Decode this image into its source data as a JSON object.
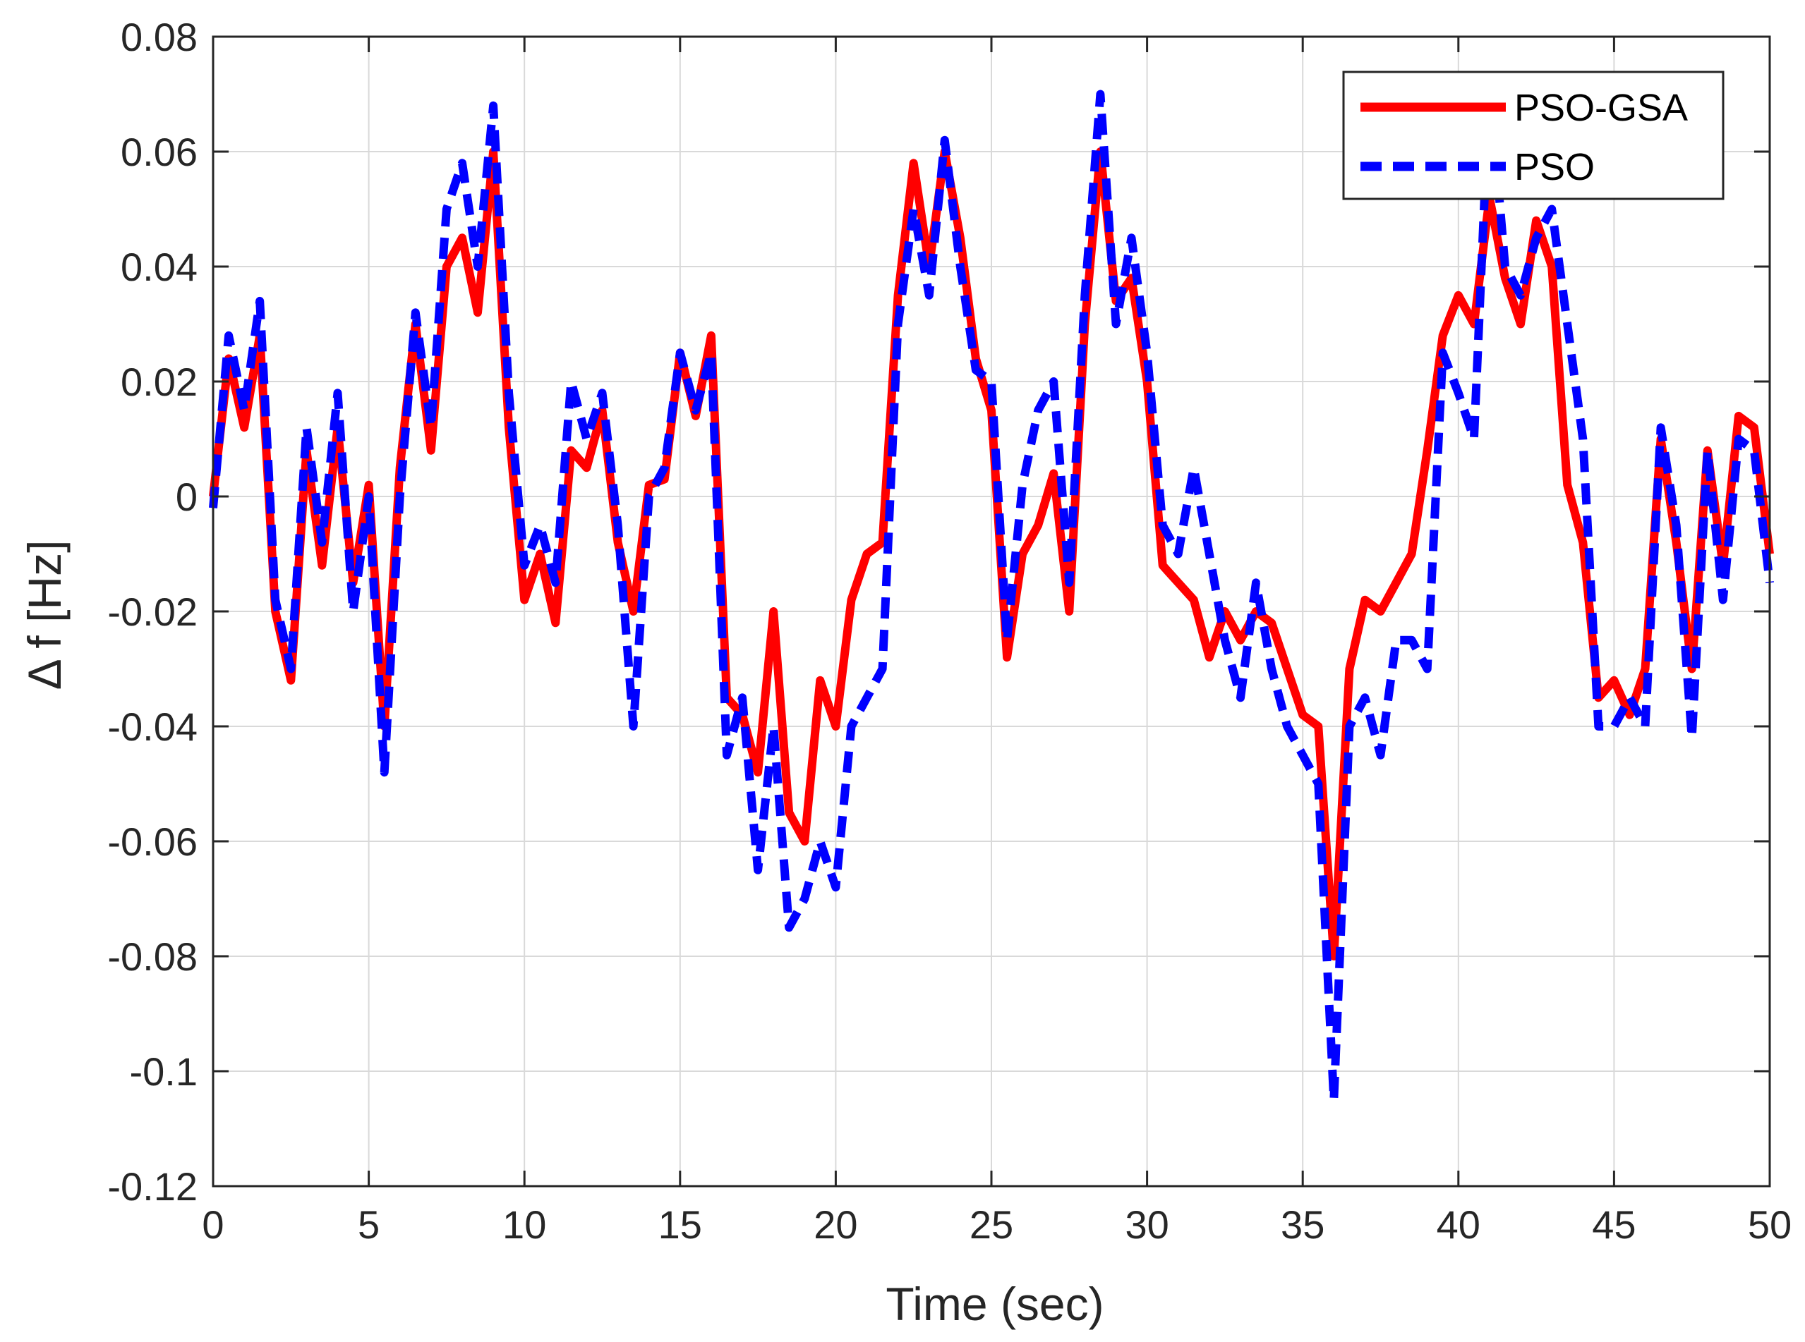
{
  "chart_data": {
    "type": "line",
    "title": "",
    "xlabel": "Time (sec)",
    "ylabel": "Δ f [Hz]",
    "xlim": [
      0,
      50
    ],
    "ylim": [
      -0.12,
      0.08
    ],
    "grid": true,
    "legend_position": "top-right",
    "x_ticks": [
      0,
      5,
      10,
      15,
      20,
      25,
      30,
      35,
      40,
      45,
      50
    ],
    "x_tick_labels": [
      "0",
      "5",
      "10",
      "15",
      "20",
      "25",
      "30",
      "35",
      "40",
      "45",
      "50"
    ],
    "y_ticks": [
      0.08,
      0.06,
      0.04,
      0.02,
      0,
      -0.02,
      -0.04,
      -0.06,
      -0.08,
      -0.1,
      -0.12
    ],
    "y_tick_labels": [
      "0.08",
      "0.06",
      "0.04",
      "0.02",
      "0",
      "-0.02",
      "-0.04",
      "-0.06",
      "-0.08",
      "-0.1",
      "-0.12"
    ],
    "series": [
      {
        "name": "PSO-GSA",
        "color": "#ff0000",
        "dash": "solid",
        "x": [
          0,
          0.5,
          1,
          1.5,
          2,
          2.5,
          3,
          3.5,
          4,
          4.5,
          5,
          5.5,
          6,
          6.5,
          7,
          7.5,
          8,
          8.5,
          9,
          9.5,
          10,
          10.5,
          11,
          11.5,
          12,
          12.5,
          13,
          13.5,
          14,
          14.5,
          15,
          15.5,
          16,
          16.5,
          17,
          17.5,
          18,
          18.5,
          19,
          19.5,
          20,
          20.5,
          21,
          21.5,
          22,
          22.5,
          23,
          23.5,
          24,
          24.5,
          25,
          25.5,
          26,
          26.5,
          27,
          27.5,
          28,
          28.5,
          29,
          29.5,
          30,
          30.5,
          31,
          31.5,
          32,
          32.5,
          33,
          33.5,
          34,
          34.5,
          35,
          35.5,
          36,
          36.5,
          37,
          37.5,
          38,
          38.5,
          39,
          39.5,
          40,
          40.5,
          41,
          41.5,
          42,
          42.5,
          43,
          43.5,
          44,
          44.5,
          45,
          45.5,
          46,
          46.5,
          47,
          47.5,
          48,
          48.5,
          49,
          49.5,
          50
        ],
        "values": [
          0,
          0.024,
          0.012,
          0.028,
          -0.02,
          -0.032,
          0.008,
          -0.012,
          0.012,
          -0.015,
          0.002,
          -0.04,
          0.005,
          0.03,
          0.008,
          0.04,
          0.045,
          0.032,
          0.06,
          0.012,
          -0.018,
          -0.01,
          -0.022,
          0.008,
          0.005,
          0.015,
          -0.008,
          -0.02,
          0.002,
          0.003,
          0.025,
          0.014,
          0.028,
          -0.035,
          -0.038,
          -0.048,
          -0.02,
          -0.055,
          -0.06,
          -0.032,
          -0.04,
          -0.018,
          -0.01,
          -0.008,
          0.035,
          0.058,
          0.04,
          0.06,
          0.045,
          0.024,
          0.015,
          -0.028,
          -0.01,
          -0.005,
          0.004,
          -0.02,
          0.03,
          0.06,
          0.034,
          0.038,
          0.02,
          -0.012,
          -0.015,
          -0.018,
          -0.028,
          -0.02,
          -0.025,
          -0.02,
          -0.022,
          -0.03,
          -0.038,
          -0.04,
          -0.08,
          -0.03,
          -0.018,
          -0.02,
          -0.015,
          -0.01,
          0.008,
          0.028,
          0.035,
          0.03,
          0.052,
          0.038,
          0.03,
          0.048,
          0.04,
          0.002,
          -0.008,
          -0.035,
          -0.032,
          -0.038,
          -0.03,
          0.01,
          -0.008,
          -0.03,
          0.008,
          -0.012,
          0.014,
          0.012,
          -0.01
        ]
      },
      {
        "name": "PSO",
        "color": "#0000ff",
        "dash": "dashed",
        "x": [
          0,
          0.5,
          1,
          1.5,
          2,
          2.5,
          3,
          3.5,
          4,
          4.5,
          5,
          5.5,
          6,
          6.5,
          7,
          7.5,
          8,
          8.5,
          9,
          9.5,
          10,
          10.5,
          11,
          11.5,
          12,
          12.5,
          13,
          13.5,
          14,
          14.5,
          15,
          15.5,
          16,
          16.5,
          17,
          17.5,
          18,
          18.5,
          19,
          19.5,
          20,
          20.5,
          21,
          21.5,
          22,
          22.5,
          23,
          23.5,
          24,
          24.5,
          25,
          25.5,
          26,
          26.5,
          27,
          27.5,
          28,
          28.5,
          29,
          29.5,
          30,
          30.5,
          31,
          31.5,
          32,
          32.5,
          33,
          33.5,
          34,
          34.5,
          35,
          35.5,
          36,
          36.5,
          37,
          37.5,
          38,
          38.5,
          39,
          39.5,
          40,
          40.5,
          41,
          41.5,
          42,
          42.5,
          43,
          43.5,
          44,
          44.5,
          45,
          45.5,
          46,
          46.5,
          47,
          47.5,
          48,
          48.5,
          49,
          49.5,
          50
        ],
        "values": [
          -0.002,
          0.028,
          0.015,
          0.034,
          -0.018,
          -0.03,
          0.012,
          -0.008,
          0.018,
          -0.02,
          0.0,
          -0.048,
          0.0,
          0.032,
          0.012,
          0.05,
          0.058,
          0.04,
          0.068,
          0.018,
          -0.012,
          -0.005,
          -0.015,
          0.02,
          0.01,
          0.018,
          -0.005,
          -0.04,
          0.0,
          0.005,
          0.025,
          0.015,
          0.025,
          -0.045,
          -0.035,
          -0.065,
          -0.04,
          -0.075,
          -0.07,
          -0.06,
          -0.068,
          -0.04,
          -0.035,
          -0.03,
          0.03,
          0.05,
          0.035,
          0.062,
          0.04,
          0.022,
          0.02,
          -0.025,
          0.002,
          0.015,
          0.02,
          -0.015,
          0.035,
          0.07,
          0.03,
          0.045,
          0.025,
          -0.005,
          -0.01,
          0.005,
          -0.01,
          -0.025,
          -0.035,
          -0.015,
          -0.03,
          -0.04,
          -0.045,
          -0.05,
          -0.105,
          -0.04,
          -0.035,
          -0.045,
          -0.025,
          -0.025,
          -0.03,
          0.025,
          0.018,
          0.01,
          0.072,
          0.04,
          0.035,
          0.045,
          0.05,
          0.03,
          0.01,
          -0.04,
          -0.04,
          -0.035,
          -0.04,
          0.012,
          -0.005,
          -0.042,
          0.008,
          -0.018,
          0.01,
          0.008,
          -0.015
        ]
      }
    ]
  }
}
